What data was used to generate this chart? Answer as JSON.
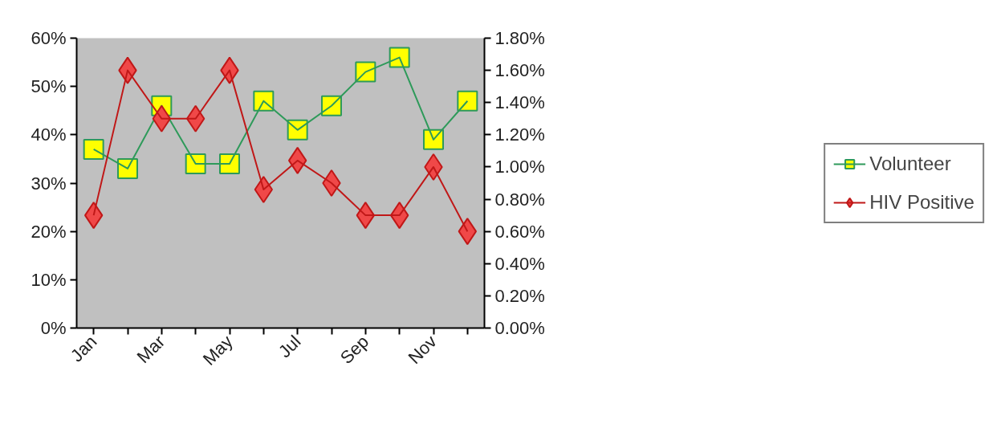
{
  "chart_data": {
    "type": "line",
    "categories": [
      "Jan",
      null,
      "Mar",
      null,
      "May",
      null,
      "Jul",
      null,
      "Sep",
      null,
      "Nov",
      null
    ],
    "series": [
      {
        "name": "Volunteer",
        "color": "#2e9a5a",
        "marker": "square",
        "colors": [
          "#ffff00",
          "#ffff00",
          "#ffff00",
          "#ffff00",
          "#ffff00",
          "#ffff00",
          "#ffff00",
          "#ffff00",
          "#ffff00",
          "#ffff00",
          "#ffff00",
          "#ffff00"
        ],
        "values": [
          37,
          33,
          46,
          34,
          34,
          47,
          41,
          46,
          53,
          56,
          39,
          47
        ]
      },
      {
        "name": "HIV Positive",
        "color": "#c01818",
        "marker": "diamond",
        "colors": [
          "#f04848",
          "#f04848",
          "#f04848",
          "#f04848",
          "#f04848",
          "#f04848",
          "#f04848",
          "#f04848",
          "#f04848",
          "#f04848",
          "#f04848",
          "#f04848"
        ],
        "axis": "y2",
        "values": [
          0.7,
          1.6,
          1.3,
          1.3,
          1.6,
          0.86,
          1.04,
          0.9,
          0.7,
          0.7,
          1.0,
          0.6
        ]
      }
    ],
    "ylim": [
      0,
      60
    ],
    "yticks": [
      {
        "value": 0,
        "label": "0%"
      },
      {
        "value": 10,
        "label": "10%"
      },
      {
        "value": 20,
        "label": "20%"
      },
      {
        "value": 30,
        "label": "30%"
      },
      {
        "value": 40,
        "label": "40%"
      },
      {
        "value": 50,
        "label": "50%"
      },
      {
        "value": 60,
        "label": "60%"
      }
    ],
    "y2lim": [
      0,
      1.8
    ],
    "y2ticks": [
      {
        "value": 0,
        "label": "0.00%"
      },
      {
        "value": 0.2,
        "label": "0.20%"
      },
      {
        "value": 0.4,
        "label": "0.40%"
      },
      {
        "value": 0.6,
        "label": "0.60%"
      },
      {
        "value": 0.8,
        "label": "0.80%"
      },
      {
        "value": 1.0,
        "label": "1.00%"
      },
      {
        "value": 1.2,
        "label": "1.20%"
      },
      {
        "value": 1.4,
        "label": "1.40%"
      },
      {
        "value": 1.6,
        "label": "1.60%"
      },
      {
        "value": 1.8,
        "label": "1.80%"
      }
    ],
    "grid": false,
    "legend": "right"
  }
}
